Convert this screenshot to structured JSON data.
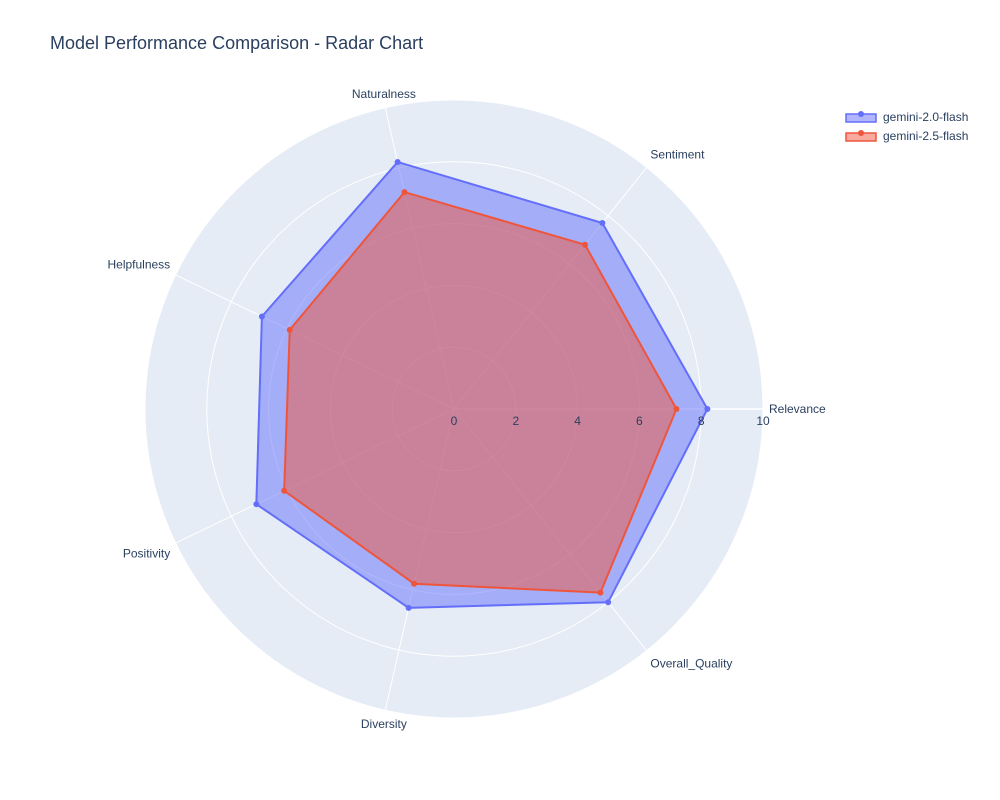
{
  "chart_data": {
    "type": "radar",
    "title": "Model Performance Comparison - Radar Chart",
    "categories": [
      "Relevance",
      "Sentiment",
      "Naturalness",
      "Helpfulness",
      "Positivity",
      "Diversity",
      "Overall_Quality"
    ],
    "radial_range": [
      0,
      10
    ],
    "radial_ticks": [
      "0",
      "2",
      "4",
      "6",
      "8",
      "10"
    ],
    "grid": true,
    "legend_position": "top-right",
    "series": [
      {
        "name": "gemini-2.0-flash",
        "color": "#636efa",
        "values": [
          8.2,
          7.7,
          8.2,
          6.9,
          7.1,
          6.6,
          8.0
        ]
      },
      {
        "name": "gemini-2.5-flash",
        "color": "#ef553b",
        "values": [
          7.2,
          6.8,
          7.2,
          5.9,
          6.1,
          5.8,
          7.6
        ]
      }
    ]
  }
}
